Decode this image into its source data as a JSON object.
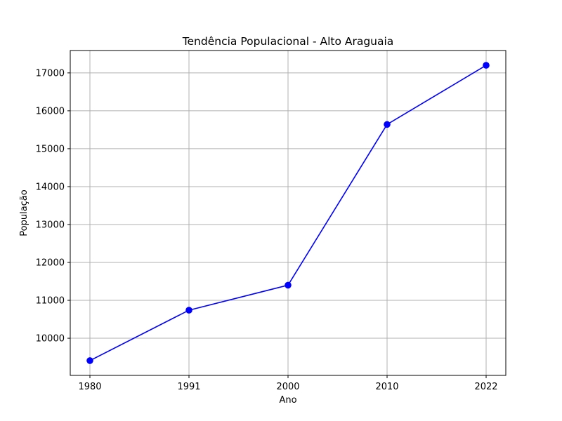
{
  "chart_data": {
    "type": "line",
    "title": "Tendência Populacional - Alto Araguaia",
    "xlabel": "Ano",
    "ylabel": "População",
    "categories": [
      "1980",
      "1991",
      "2000",
      "2010",
      "2022"
    ],
    "series": [
      {
        "values": [
          9410,
          10740,
          11400,
          15640,
          17200
        ],
        "color": "#0000ff",
        "marker": "circle"
      }
    ],
    "yticks": [
      10000,
      11000,
      12000,
      13000,
      14000,
      15000,
      16000,
      17000
    ],
    "ytick_labels": [
      "10000",
      "11000",
      "12000",
      "13000",
      "14000",
      "15000",
      "16000",
      "17000"
    ],
    "ylim": [
      9020,
      17590
    ],
    "grid": true,
    "legend": "none"
  }
}
